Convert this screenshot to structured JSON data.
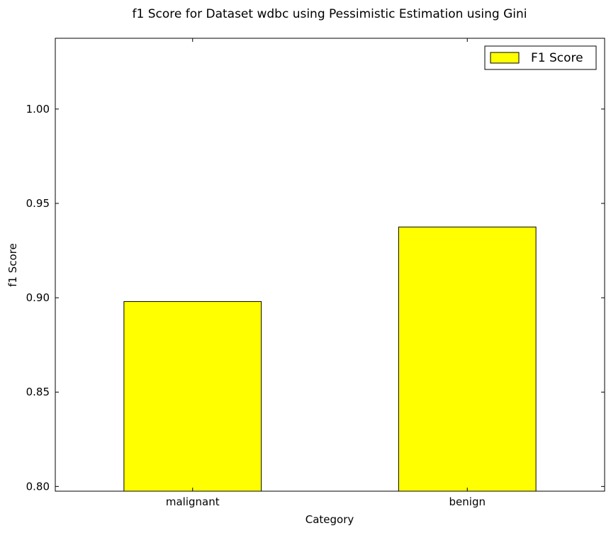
{
  "chart_data": {
    "type": "bar",
    "title": "f1 Score for Dataset wdbc using Pessimistic Estimation using Gini",
    "xlabel": "Category",
    "ylabel": "f1 Score",
    "categories": [
      "malignant",
      "benign"
    ],
    "series": [
      {
        "name": "F1 Score",
        "values": [
          0.898,
          0.9375
        ]
      }
    ],
    "ylim": [
      0.7975,
      1.0375
    ],
    "yticks": [
      "0.80",
      "0.85",
      "0.90",
      "0.95",
      "1.00"
    ],
    "grid": false,
    "legend": "top-right",
    "colors": {
      "bar_fill": "#ffff00",
      "bar_edge": "#000000"
    }
  }
}
